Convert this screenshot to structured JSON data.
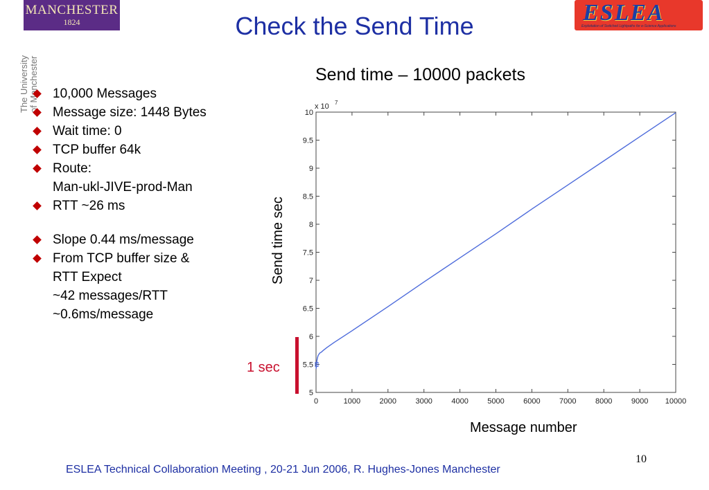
{
  "logos": {
    "left_word": "MANCHESTER",
    "left_year": "1824",
    "vertical_text": [
      "The University",
      "of Manchester"
    ],
    "right_word": "ESLEA",
    "right_sub": "Exploitation of Switched Lightpaths for e-Science Applications"
  },
  "slide": {
    "title": "Check the Send Time",
    "page_number": "10",
    "footer": "ESLEA Technical Collaboration Meeting , 20-21 Jun 2006,  R. Hughes-Jones  Manchester"
  },
  "bullets": [
    [
      "10,000 Messages"
    ],
    [
      "Message size: 1448 Bytes"
    ],
    [
      "Wait time: 0"
    ],
    [
      "TCP buffer 64k"
    ],
    [
      "Route:",
      "Man-ukl-JIVE-prod-Man"
    ],
    [
      "RTT ~26 ms"
    ],
    [
      "Slope 0.44 ms/message"
    ],
    [
      "From TCP buffer size &",
      "RTT Expect",
      "~42 messages/RTT",
      "~0.6ms/message"
    ]
  ],
  "annotation": {
    "label": "1 sec"
  },
  "colors": {
    "title_blue": "#1d2fa3",
    "bullet_red": "#c00000",
    "line_blue": "#4d6bdb",
    "annotation_red": "#c8102e"
  },
  "chart_data": {
    "type": "line",
    "title": "Send time – 10000 packets",
    "xlabel": "Message number",
    "ylabel": "Send time sec",
    "y_multiplier_label": "x 10",
    "y_multiplier_exp": "7",
    "xlim": [
      0,
      10000
    ],
    "ylim": [
      5,
      10
    ],
    "xticks": [
      0,
      1000,
      2000,
      3000,
      4000,
      5000,
      6000,
      7000,
      8000,
      9000,
      10000
    ],
    "yticks": [
      5,
      5.5,
      6,
      6.5,
      7,
      7.5,
      8,
      8.5,
      9,
      9.5,
      10
    ],
    "grid": false,
    "series": [
      {
        "x": [
          0,
          10,
          20,
          40,
          60,
          80,
          100,
          150,
          200,
          300,
          500,
          1000,
          2000,
          3000,
          4000,
          5000,
          6000,
          7000,
          8000,
          9000,
          10000
        ],
        "values": [
          5.42,
          5.45,
          5.55,
          5.62,
          5.66,
          5.68,
          5.7,
          5.72,
          5.75,
          5.8,
          5.89,
          6.1,
          6.53,
          6.97,
          7.4,
          7.83,
          8.27,
          8.7,
          9.13,
          9.56,
          9.99
        ]
      }
    ]
  }
}
